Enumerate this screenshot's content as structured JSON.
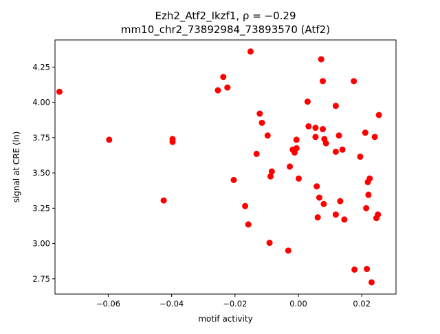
{
  "chart_data": {
    "type": "scatter",
    "title_line1": "Ezh2_Atf2_Ikzf1, ρ = −0.29",
    "title_line2": "mm10_chr2_73892984_73893570 (Atf2)",
    "xlabel": "motif activity",
    "ylabel": "signal at CRE (ln)",
    "xlim": [
      -0.0768,
      0.0308
    ],
    "ylim": [
      2.642,
      4.442
    ],
    "x_ticks": [
      {
        "value": -0.06,
        "label": "−0.06"
      },
      {
        "value": -0.04,
        "label": "−0.04"
      },
      {
        "value": -0.02,
        "label": "−0.02"
      },
      {
        "value": 0.0,
        "label": "0.00"
      },
      {
        "value": 0.02,
        "label": "0.02"
      }
    ],
    "y_ticks": [
      {
        "value": 2.75,
        "label": "2.75"
      },
      {
        "value": 3.0,
        "label": "3.00"
      },
      {
        "value": 3.25,
        "label": "3.25"
      },
      {
        "value": 3.5,
        "label": "3.50"
      },
      {
        "value": 3.75,
        "label": "3.75"
      },
      {
        "value": 4.0,
        "label": "4.00"
      },
      {
        "value": 4.25,
        "label": "4.25"
      }
    ],
    "grid": false,
    "legend": "none",
    "marker_color": "#ff0000",
    "points": [
      {
        "x": -0.0754,
        "y": 4.075
      },
      {
        "x": -0.0597,
        "y": 3.735
      },
      {
        "x": -0.0425,
        "y": 3.305
      },
      {
        "x": -0.0397,
        "y": 3.74
      },
      {
        "x": -0.0397,
        "y": 3.72
      },
      {
        "x": -0.0254,
        "y": 4.085
      },
      {
        "x": -0.0237,
        "y": 4.18
      },
      {
        "x": -0.0224,
        "y": 4.105
      },
      {
        "x": -0.0204,
        "y": 3.45
      },
      {
        "x": -0.0168,
        "y": 3.265
      },
      {
        "x": -0.0158,
        "y": 3.135
      },
      {
        "x": -0.0151,
        "y": 4.36
      },
      {
        "x": -0.0132,
        "y": 3.635
      },
      {
        "x": -0.0122,
        "y": 3.92
      },
      {
        "x": -0.0115,
        "y": 3.855
      },
      {
        "x": -0.0097,
        "y": 3.765
      },
      {
        "x": -0.0091,
        "y": 3.005
      },
      {
        "x": -0.0088,
        "y": 3.475
      },
      {
        "x": -0.0084,
        "y": 3.51
      },
      {
        "x": -0.0032,
        "y": 2.95
      },
      {
        "x": -0.0027,
        "y": 3.545
      },
      {
        "x": -0.0018,
        "y": 3.665
      },
      {
        "x": -0.0012,
        "y": 3.645
      },
      {
        "x": -0.0006,
        "y": 3.735
      },
      {
        "x": -0.0006,
        "y": 3.675
      },
      {
        "x": 0.0001,
        "y": 3.46
      },
      {
        "x": 0.0029,
        "y": 4.005
      },
      {
        "x": 0.0032,
        "y": 3.83
      },
      {
        "x": 0.0054,
        "y": 3.82
      },
      {
        "x": 0.0054,
        "y": 3.755
      },
      {
        "x": 0.0058,
        "y": 3.405
      },
      {
        "x": 0.0061,
        "y": 3.185
      },
      {
        "x": 0.0066,
        "y": 3.325
      },
      {
        "x": 0.0072,
        "y": 4.305
      },
      {
        "x": 0.0077,
        "y": 4.15
      },
      {
        "x": 0.0077,
        "y": 3.81
      },
      {
        "x": 0.008,
        "y": 3.28
      },
      {
        "x": 0.0082,
        "y": 3.74
      },
      {
        "x": 0.0087,
        "y": 3.71
      },
      {
        "x": 0.0118,
        "y": 3.975
      },
      {
        "x": 0.0118,
        "y": 3.65
      },
      {
        "x": 0.0118,
        "y": 3.205
      },
      {
        "x": 0.0128,
        "y": 3.765
      },
      {
        "x": 0.0132,
        "y": 3.3
      },
      {
        "x": 0.0139,
        "y": 3.665
      },
      {
        "x": 0.0145,
        "y": 3.17
      },
      {
        "x": 0.0175,
        "y": 4.15
      },
      {
        "x": 0.0177,
        "y": 2.815
      },
      {
        "x": 0.0195,
        "y": 3.615
      },
      {
        "x": 0.0211,
        "y": 3.785
      },
      {
        "x": 0.0214,
        "y": 3.25
      },
      {
        "x": 0.0216,
        "y": 2.82
      },
      {
        "x": 0.0219,
        "y": 3.435
      },
      {
        "x": 0.0221,
        "y": 3.345
      },
      {
        "x": 0.0225,
        "y": 3.46
      },
      {
        "x": 0.0231,
        "y": 2.725
      },
      {
        "x": 0.0241,
        "y": 3.755
      },
      {
        "x": 0.0246,
        "y": 3.18
      },
      {
        "x": 0.0251,
        "y": 3.205
      },
      {
        "x": 0.0254,
        "y": 3.91
      }
    ]
  }
}
